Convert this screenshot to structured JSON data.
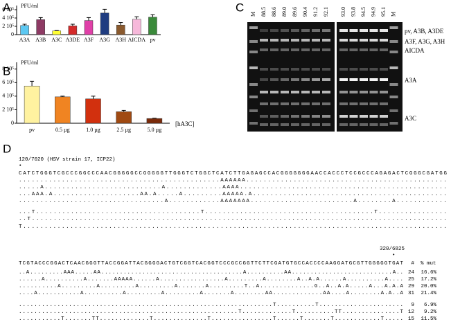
{
  "panel_labels": [
    "A",
    "B",
    "C",
    "D"
  ],
  "chart_data": [
    {
      "type": "bar",
      "y_label": "PFU/ml",
      "categories": [
        "A3A",
        "A3B",
        "A3C",
        "A3DE",
        "A3F",
        "A3G",
        "A3H",
        "AICDA",
        "pv"
      ],
      "values": [
        220000,
        360000,
        90000,
        210000,
        340000,
        520000,
        230000,
        370000,
        420000
      ],
      "errors": [
        30000,
        50000,
        10000,
        40000,
        70000,
        90000,
        60000,
        60000,
        60000
      ],
      "colors": [
        "#5cc8f2",
        "#8e3a64",
        "#ffff33",
        "#d42a2a",
        "#e040a8",
        "#1f3c80",
        "#8a5a2e",
        "#f6b8da",
        "#3a8a3a"
      ],
      "ylim": [
        0,
        700000
      ],
      "yticks": [
        0,
        {
          "value": 200000,
          "label": "2 10⁵"
        },
        {
          "value": 400000,
          "label": "4 10⁵"
        },
        {
          "value": 600000,
          "label": "6 10⁵"
        }
      ]
    },
    {
      "type": "bar",
      "y_label": "PFU/ml",
      "annotation": "[hA3C]",
      "categories": [
        "pv",
        "0.5 µg",
        "1.0 µg",
        "2.5 µg",
        "5.0 µg"
      ],
      "values": [
        550000,
        390000,
        360000,
        170000,
        70000
      ],
      "errors": [
        70000,
        10000,
        40000,
        20000,
        5000
      ],
      "colors": [
        "#fff2a0",
        "#f08422",
        "#d2300e",
        "#a04a12",
        "#7a2a0a"
      ],
      "ylim": [
        0,
        900000
      ],
      "yticks": [
        0,
        {
          "value": 200000,
          "label": "2 10⁵"
        },
        {
          "value": 400000,
          "label": "4 10⁵"
        },
        {
          "value": 600000,
          "label": "6 10⁵"
        },
        {
          "value": 800000,
          "label": "8 10⁵"
        }
      ]
    }
  ],
  "gel": {
    "lanes": [
      "M",
      "88.5",
      "88.6",
      "89.0",
      "89.6",
      "90.4",
      "91.2",
      "92.1",
      "93.0",
      "93.8",
      "94.5",
      "94.9",
      "95.1",
      "M"
    ],
    "band_labels": [
      "pv, A3B, A3DE",
      "A3F, A3G, A3H",
      "AICDA",
      "A3A",
      "A3C"
    ]
  },
  "alignment": {
    "blocks": [
      {
        "header": "120/7020 (HSV strain 17, ICP22)",
        "marker": "•",
        "reference": "CATCTGGGTCGCCCGGCCCAACGGGGGCCGGGGGTTGGGTCTGGCTCATCTTGAGAGCCACGGGGGGGAACCACCCTCCGCCCAGAGACTCGGGCGATGG",
        "groups": [
          [
            {
              "seq": "...............................................AAAAAA..............................................."
            },
            {
              "seq": ".....A...........................A.............AAAA................................................"
            },
            {
              "seq": "...AAA.A....................AA.A.....A.........AAAAA.A............................................."
            },
            {
              "seq": "..................................A............AAAAAAA........................A........A............"
            }
          ],
          [
            {
              "seq": "...T......................................T.......................................T................"
            },
            {
              "seq": "..T................................................................................................"
            },
            {
              "seq": "T..................................................................................................."
            }
          ]
        ]
      },
      {
        "header": "320/6825",
        "marker": "•",
        "count_header": "#",
        "pct_header": "% mut",
        "reference": "TCGTACCCGGACTCAACGGGTTACCGGATTACGGGGACTGTCGGTCACGGTCCCGCCGGTTCTTCGATGTGCCACCCCAAGGATGCGTTGGGGGTGAT",
        "groups": [
          [
            {
              "seq": "..A.........AAA.....AA......................................A..........AA...........................A..",
              "count": "24",
              "pct": "16.6%"
            },
            {
              "seq": "......A..........A.......AAAAA......A.................A.........A........A..A.A......A..........A....",
              "count": "25",
              "pct": "17.2%"
            },
            {
              "seq": "..........A.........A.........A.........A.......A.........T..A..............G..A..A.A.....A...A.A.A",
              "count": "29",
              "pct": "20.0%"
            },
            {
              "seq": "....A...........A..........A.........A.........A.......A........AA.............AA....A........A.A..A",
              "count": "31",
              "pct": "21.4%"
            }
          ],
          [
            {
              "seq": "..................................................................T..........T......................",
              "count": "9",
              "pct": "6.9%"
            },
            {
              "seq": ".........................................................T.............T..........TT...............T",
              "count": "12",
              "pct": "9.2%"
            },
            {
              "seq": "...........T.......TT.............T..............T................T......T.......T............T.....",
              "count": "15",
              "pct": "11.5%"
            }
          ]
        ]
      }
    ]
  }
}
